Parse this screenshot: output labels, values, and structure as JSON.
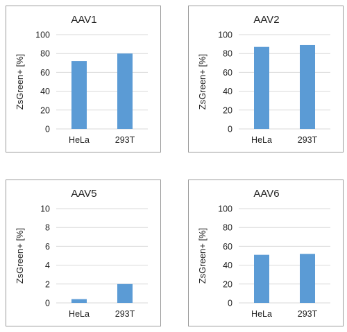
{
  "chart_data": [
    {
      "type": "bar",
      "title": "AAV1",
      "ylabel": "ZsGreen+ [%]",
      "categories": [
        "HeLa",
        "293T"
      ],
      "values": [
        72,
        80
      ],
      "ylim": [
        0,
        100
      ],
      "yticks": [
        "0",
        "20",
        "40",
        "60",
        "80",
        "100"
      ],
      "grid": true,
      "color": "#5b9bd5"
    },
    {
      "type": "bar",
      "title": "AAV2",
      "ylabel": "ZsGreen+ [%]",
      "categories": [
        "HeLa",
        "293T"
      ],
      "values": [
        87,
        89
      ],
      "ylim": [
        0,
        100
      ],
      "yticks": [
        "0",
        "20",
        "40",
        "60",
        "80",
        "100"
      ],
      "grid": true,
      "color": "#5b9bd5"
    },
    {
      "type": "bar",
      "title": "AAV5",
      "ylabel": "ZsGreen+ [%]",
      "categories": [
        "HeLa",
        "293T"
      ],
      "values": [
        0.4,
        2.0
      ],
      "ylim": [
        0,
        10
      ],
      "yticks": [
        "0",
        "2",
        "4",
        "6",
        "8",
        "10"
      ],
      "grid": true,
      "color": "#5b9bd5"
    },
    {
      "type": "bar",
      "title": "AAV6",
      "ylabel": "ZsGreen+ [%]",
      "categories": [
        "HeLa",
        "293T"
      ],
      "values": [
        51,
        52
      ],
      "ylim": [
        0,
        100
      ],
      "yticks": [
        "0",
        "20",
        "40",
        "60",
        "80",
        "100"
      ],
      "grid": true,
      "color": "#5b9bd5"
    }
  ]
}
